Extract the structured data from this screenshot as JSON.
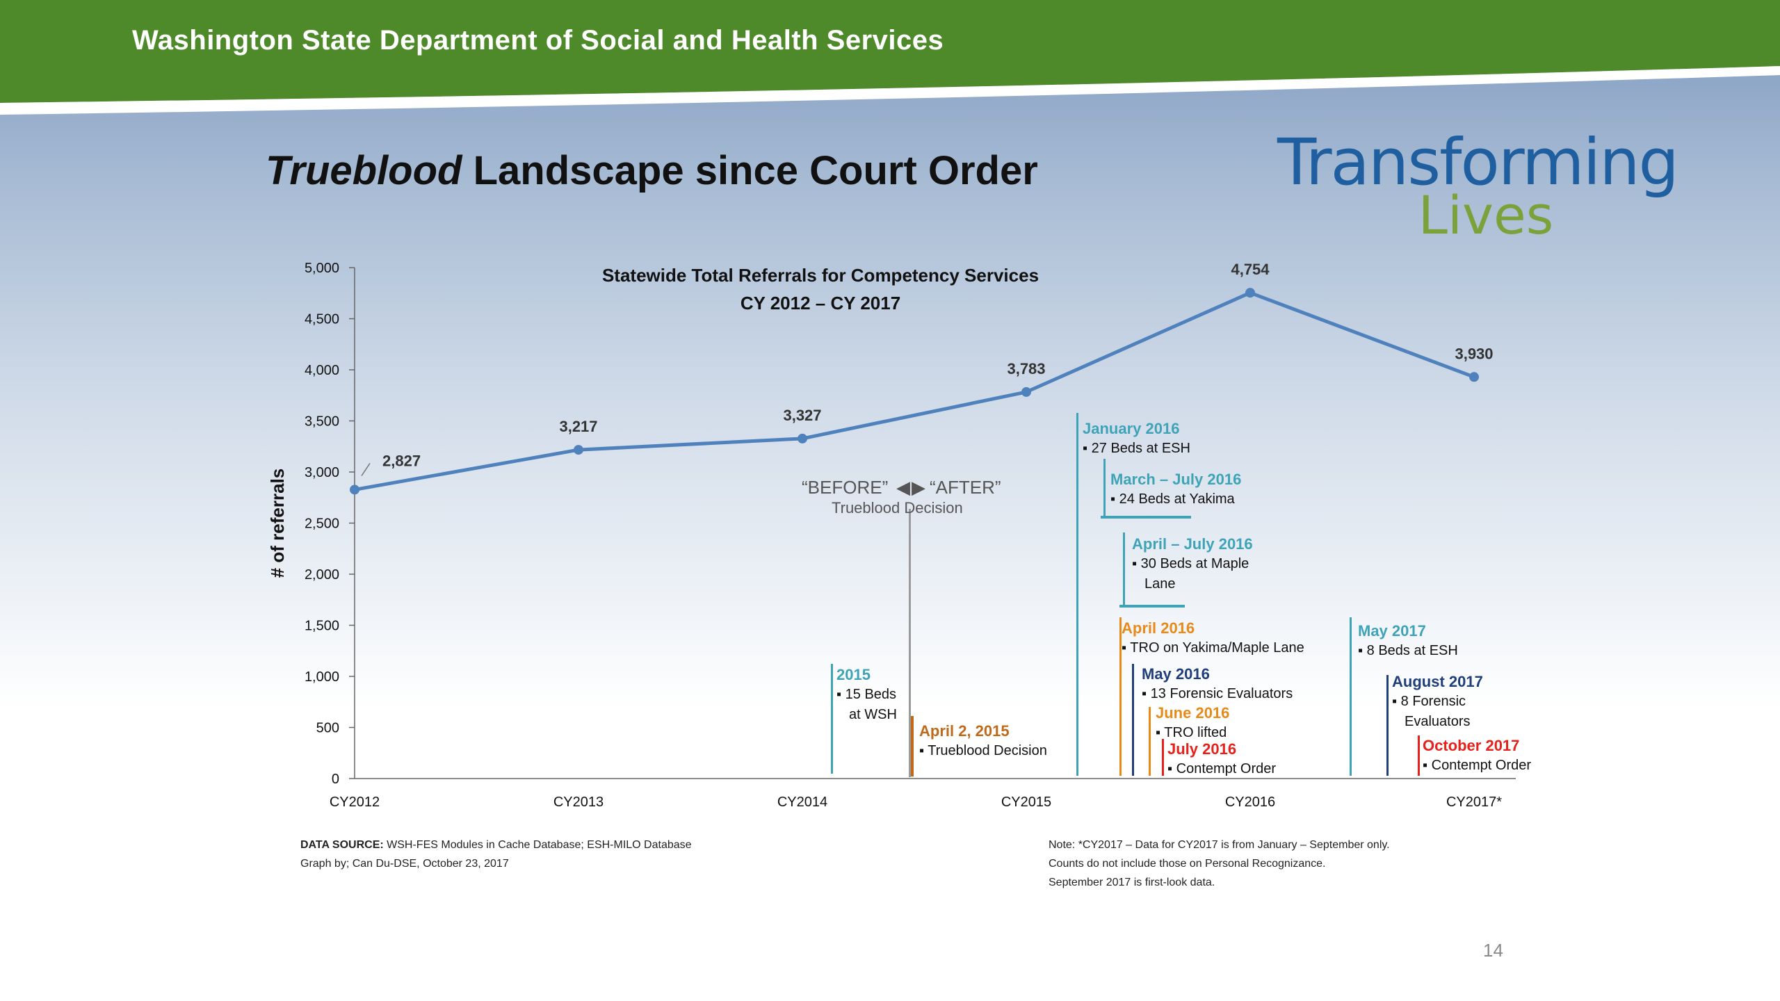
{
  "header": {
    "agency": "Washington State Department of Social and Health Services"
  },
  "slide_title": {
    "italic": "Trueblood",
    "rest": " Landscape since Court Order"
  },
  "logo": {
    "line1": "Transforming",
    "line2": "Lives"
  },
  "colors": {
    "green": "#4e8a2a",
    "line": "#4f81bd",
    "teal": "#3fa3b8",
    "orange": "#e88a1a",
    "navy": "#1f3e7a",
    "red": "#e8201a",
    "brown": "#c0691a",
    "gray": "#9a9a9a"
  },
  "chart_data": {
    "type": "line",
    "title_line1": "Statewide Total Referrals for Competency Services",
    "title_line2": "CY 2012 – CY 2017",
    "ylabel": "# of referrals",
    "xlabel": "",
    "categories": [
      "CY2012",
      "CY2013",
      "CY2014",
      "CY2015",
      "CY2016",
      "CY2017*"
    ],
    "values": [
      2827,
      3217,
      3327,
      3783,
      4754,
      3930
    ],
    "value_labels": [
      "2,827",
      "3,217",
      "3,327",
      "3,783",
      "4,754",
      "3,930"
    ],
    "ylim": [
      0,
      5000
    ],
    "yticks": [
      "0",
      "500",
      "1,000",
      "1,500",
      "2,000",
      "2,500",
      "3,000",
      "3,500",
      "4,000",
      "4,500",
      "5,000"
    ],
    "grid": false,
    "legend": "none",
    "divider": {
      "before": "“BEFORE”",
      "after": "“AFTER”",
      "sub": "Trueblood Decision"
    },
    "annotations": [
      {
        "id": "ann-2015-beds",
        "heading": "2015",
        "items": [
          "▪ 15 Beds",
          "at WSH"
        ],
        "color": "teal"
      },
      {
        "id": "ann-april-2015",
        "heading": "April 2, 2015",
        "items": [
          "▪ Trueblood Decision"
        ],
        "color": "brown"
      },
      {
        "id": "ann-jan-2016",
        "heading": "January 2016",
        "items": [
          "▪ 27 Beds at ESH"
        ],
        "color": "teal"
      },
      {
        "id": "ann-mar-jul-2016",
        "heading": "March – July 2016",
        "items": [
          "▪ 24 Beds at Yakima"
        ],
        "color": "teal"
      },
      {
        "id": "ann-apr-jul-2016",
        "heading": "April – July 2016",
        "items": [
          "▪ 30 Beds at Maple",
          "Lane"
        ],
        "color": "teal"
      },
      {
        "id": "ann-apr-2016",
        "heading": "April 2016",
        "items": [
          "▪ TRO on Yakima/Maple Lane"
        ],
        "color": "orange"
      },
      {
        "id": "ann-may-2016",
        "heading": "May 2016",
        "items": [
          "▪ 13 Forensic Evaluators"
        ],
        "color": "navy"
      },
      {
        "id": "ann-jun-2016",
        "heading": "June 2016",
        "items": [
          "▪ TRO lifted"
        ],
        "color": "orange"
      },
      {
        "id": "ann-jul-2016",
        "heading": "July 2016",
        "items": [
          "▪ Contempt Order"
        ],
        "color": "red"
      },
      {
        "id": "ann-may-2017",
        "heading": "May 2017",
        "items": [
          "▪ 8 Beds at ESH"
        ],
        "color": "teal"
      },
      {
        "id": "ann-aug-2017",
        "heading": "August 2017",
        "items": [
          "▪ 8 Forensic",
          "Evaluators"
        ],
        "color": "navy"
      },
      {
        "id": "ann-oct-2017",
        "heading": "October 2017",
        "items": [
          "▪ Contempt Order"
        ],
        "color": "red"
      }
    ]
  },
  "footer": {
    "source_label": "DATA SOURCE:",
    "source_text": " WSH-FES Modules in Cache Database; ESH-MILO Database",
    "graph_by": "Graph by; Can Du-DSE, October 23, 2017",
    "note1": "Note: *CY2017 – Data for CY2017 is from January – September only.",
    "note2": "Counts do not include those on Personal Recognizance.",
    "note3": "September 2017 is first-look data."
  },
  "page_number": "14"
}
